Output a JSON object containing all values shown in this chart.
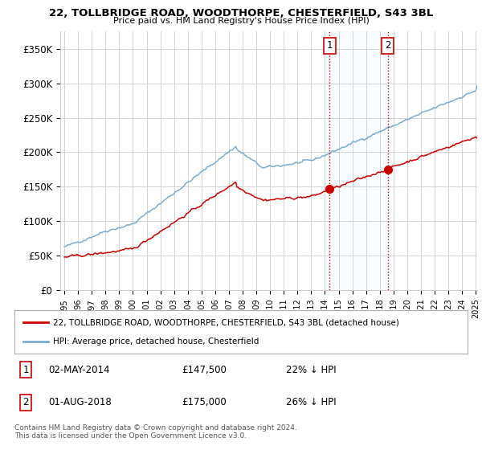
{
  "title1": "22, TOLLBRIDGE ROAD, WOODTHORPE, CHESTERFIELD, S43 3BL",
  "title2": "Price paid vs. HM Land Registry's House Price Index (HPI)",
  "legend_line1": "22, TOLLBRIDGE ROAD, WOODTHORPE, CHESTERFIELD, S43 3BL (detached house)",
  "legend_line2": "HPI: Average price, detached house, Chesterfield",
  "annotation1": {
    "label": "1",
    "date": "02-MAY-2014",
    "price": "£147,500",
    "pct": "22% ↓ HPI",
    "year": 2014.33
  },
  "annotation2": {
    "label": "2",
    "date": "01-AUG-2018",
    "price": "£175,000",
    "pct": "26% ↓ HPI",
    "year": 2018.58
  },
  "sale1_value": 147500,
  "sale2_value": 175000,
  "footer": "Contains HM Land Registry data © Crown copyright and database right 2024.\nThis data is licensed under the Open Government Licence v3.0.",
  "red_color": "#cc0000",
  "blue_color": "#7aadcf",
  "shade_color": "#ddeeff",
  "bg_color": "#ffffff",
  "grid_color": "#cccccc",
  "ylim": [
    0,
    375000
  ],
  "yticks": [
    0,
    50000,
    100000,
    150000,
    200000,
    250000,
    300000,
    350000
  ],
  "ytick_labels": [
    "£0",
    "£50K",
    "£100K",
    "£150K",
    "£200K",
    "£250K",
    "£300K",
    "£350K"
  ],
  "year_start": 1995,
  "year_end": 2025
}
